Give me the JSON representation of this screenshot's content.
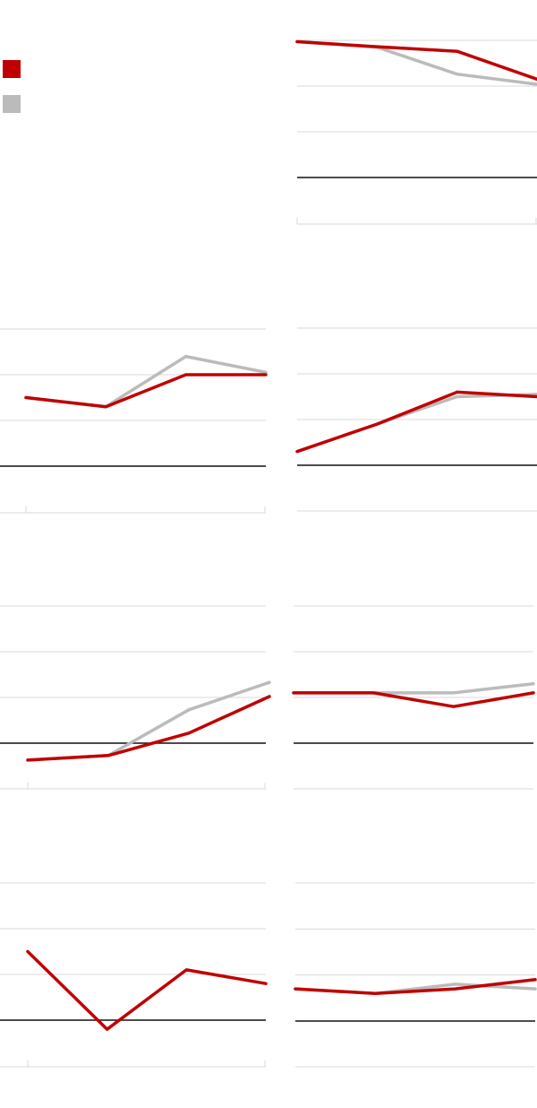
{
  "colors": {
    "primary": "#c00000",
    "secondary": "#bbbbbb",
    "gridline": "#d8d8d8",
    "baseline": "#111111"
  },
  "legend": [
    {
      "label": "",
      "color": "#c00000"
    },
    {
      "label": "",
      "color": "#bbbbbb"
    }
  ],
  "chart_data": [
    {
      "type": "line",
      "title": "",
      "x": [
        0,
        1,
        2,
        3
      ],
      "ylim": [
        0,
        3
      ],
      "grid": true,
      "xaxis_ticks": 2,
      "series": [
        {
          "name": "",
          "color": "#bbbbbb",
          "values": [
            2.97,
            2.85,
            2.26,
            2.04
          ]
        },
        {
          "name": "",
          "color": "#c00000",
          "values": [
            2.97,
            2.86,
            2.76,
            2.15
          ]
        }
      ]
    },
    {
      "type": "line",
      "title": "",
      "x": [
        0,
        1,
        2,
        3
      ],
      "ylim": [
        0,
        3
      ],
      "grid": true,
      "xaxis_ticks": 2,
      "series": [
        {
          "name": "",
          "color": "#bbbbbb",
          "values": [
            1.5,
            1.3,
            2.4,
            2.05
          ]
        },
        {
          "name": "",
          "color": "#c00000",
          "values": [
            1.5,
            1.3,
            2.0,
            2.0
          ]
        }
      ]
    },
    {
      "type": "line",
      "title": "",
      "x": [
        0,
        1,
        2,
        3
      ],
      "ylim": [
        0,
        3
      ],
      "grid": true,
      "xaxis_ticks": 0,
      "series": [
        {
          "name": "",
          "color": "#bbbbbb",
          "values": [
            0.3,
            0.9,
            1.5,
            1.55
          ]
        },
        {
          "name": "",
          "color": "#c00000",
          "values": [
            0.3,
            0.9,
            1.6,
            1.5
          ]
        }
      ]
    },
    {
      "type": "line",
      "title": "",
      "x": [
        0,
        1,
        2,
        3
      ],
      "ylim": [
        -0.5,
        3
      ],
      "grid": true,
      "xaxis_ticks": 2,
      "series": [
        {
          "name": "",
          "color": "#bbbbbb",
          "values": [
            -0.37,
            -0.27,
            0.73,
            1.33
          ]
        },
        {
          "name": "",
          "color": "#c00000",
          "values": [
            -0.37,
            -0.27,
            0.22,
            1.02
          ]
        }
      ]
    },
    {
      "type": "line",
      "title": "",
      "x": [
        0,
        1,
        2,
        3
      ],
      "ylim": [
        0,
        3
      ],
      "grid": true,
      "xaxis_ticks": 0,
      "series": [
        {
          "name": "",
          "color": "#bbbbbb",
          "values": [
            1.1,
            1.1,
            1.1,
            1.3
          ]
        },
        {
          "name": "",
          "color": "#c00000",
          "values": [
            1.1,
            1.1,
            0.8,
            1.1
          ]
        }
      ]
    },
    {
      "type": "line",
      "title": "",
      "x": [
        0,
        1,
        2,
        3
      ],
      "ylim": [
        -0.5,
        3
      ],
      "grid": true,
      "xaxis_ticks": 2,
      "series": [
        {
          "name": "",
          "color": "#c00000",
          "values": [
            1.5,
            -0.2,
            1.1,
            0.8
          ]
        }
      ]
    },
    {
      "type": "line",
      "title": "",
      "x": [
        0,
        1,
        2,
        3
      ],
      "ylim": [
        -0.5,
        3
      ],
      "grid": true,
      "xaxis_ticks": 0,
      "series": [
        {
          "name": "",
          "color": "#bbbbbb",
          "values": [
            0.7,
            0.6,
            0.8,
            0.7
          ]
        },
        {
          "name": "",
          "color": "#c00000",
          "values": [
            0.7,
            0.6,
            0.7,
            0.9
          ]
        }
      ]
    }
  ]
}
